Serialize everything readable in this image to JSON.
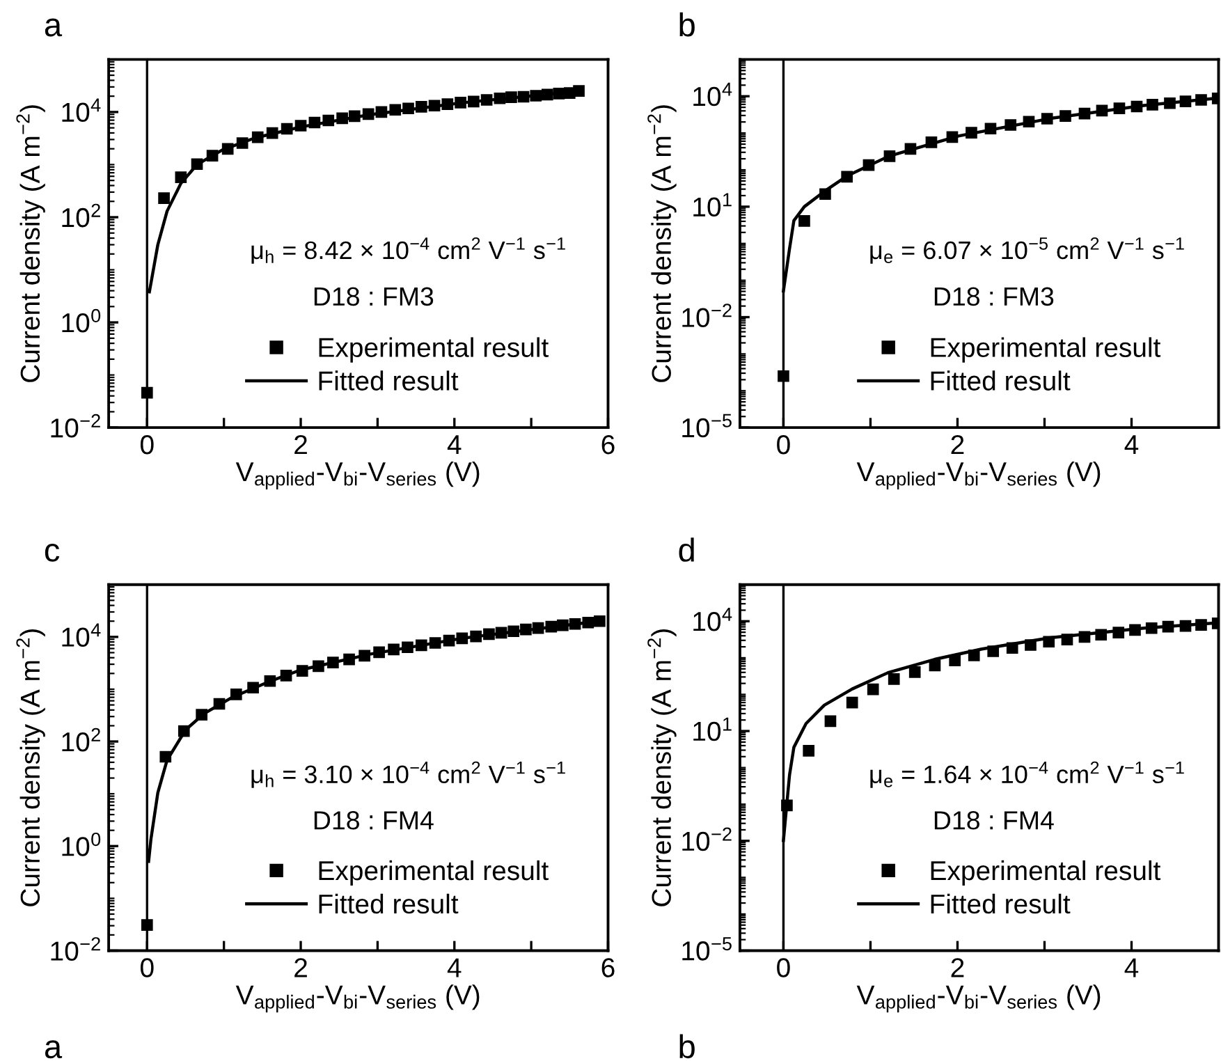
{
  "chart_data": [
    {
      "type": "scatter",
      "title": "a",
      "xlabel": "V$_{applied}$-V$_{bi}$-V$_{series}$ (V)",
      "ylabel": "Current density (A m$^{−2}$)",
      "annotations": [
        "μ$_{h}$ = 8.42 × 10$^{−4}$ cm$^{2}$ V$^{−1}$ s$^{−1}$",
        "D18 : FM3"
      ],
      "log": "y",
      "xlim": [
        -0.5,
        6
      ],
      "ylim": [
        0.01,
        100000
      ],
      "xticks": [
        0,
        {
          "value": 1,
          "label": null
        },
        2,
        {
          "value": 3,
          "label": null
        },
        4,
        {
          "value": 5,
          "label": null
        },
        6
      ],
      "yticks": [
        {
          "value": 0.01,
          "label": "10$^{−2}$"
        },
        {
          "value": 1,
          "label": "10$^{0}$"
        },
        {
          "value": 100,
          "label": "10$^{2}$"
        },
        {
          "value": 10000,
          "label": "10$^{4}$"
        }
      ],
      "ref_lines": [
        {
          "axis": "x",
          "value": 0,
          "color": "#000000"
        }
      ],
      "legend": "bottom right",
      "grid": false,
      "series": [
        {
          "name": "Experimental result",
          "marker": "square",
          "color": "#000000",
          "x": [
            0,
            0.22,
            0.44,
            0.65,
            0.85,
            1.05,
            1.24,
            1.44,
            1.63,
            1.82,
            2.0,
            2.18,
            2.36,
            2.54,
            2.7,
            2.88,
            3.05,
            3.23,
            3.4,
            3.57,
            3.74,
            3.91,
            4.08,
            4.25,
            4.42,
            4.59,
            4.74,
            4.9,
            5.06,
            5.21,
            5.36,
            5.5,
            5.62
          ],
          "values": [
            0.046,
            230,
            575,
            1020,
            1480,
            1990,
            2570,
            3310,
            3980,
            4790,
            5500,
            6310,
            6920,
            7590,
            8320,
            9120,
            10000,
            11000,
            11700,
            12600,
            13200,
            14100,
            15100,
            15800,
            17000,
            18200,
            19100,
            19500,
            20400,
            21400,
            22400,
            22900,
            25100
          ]
        },
        {
          "name": "Fitted result",
          "type": "line",
          "marker": "none",
          "line_style": "solid",
          "color": "#000000",
          "x": [
            0.03,
            0.14,
            0.26,
            0.44,
            0.65,
            0.98,
            1.4,
            2.0,
            2.9,
            4.1,
            5.63
          ],
          "values": [
            3.8,
            30,
            130,
            440,
            1000,
            1900,
            3200,
            5200,
            8900,
            15000,
            25000
          ]
        }
      ]
    },
    {
      "type": "scatter",
      "title": "b",
      "xlabel": "V$_{applied}$-V$_{bi}$-V$_{series}$ (V)",
      "ylabel": "Current density (A m$^{−2}$)",
      "annotations": [
        "μ$_{e}$ = 6.07 × 10$^{−5}$ cm$^{2}$ V$^{−1}$ s$^{−1}$",
        "D18 : FM3"
      ],
      "log": "y",
      "xlim": [
        -0.5,
        5
      ],
      "ylim": [
        1e-05,
        100000
      ],
      "xticks": [
        0,
        {
          "value": 1,
          "label": null
        },
        2,
        {
          "value": 3,
          "label": null
        },
        4
      ],
      "yticks": [
        {
          "value": 1e-05,
          "label": "10$^{−5}$"
        },
        {
          "value": 0.01,
          "label": "10$^{−2}$"
        },
        {
          "value": 10,
          "label": "10$^{1}$"
        },
        {
          "value": 10000,
          "label": "10$^{4}$"
        }
      ],
      "ref_lines": [
        {
          "axis": "x",
          "value": 0,
          "color": "#000000"
        }
      ],
      "legend": "bottom right",
      "grid": false,
      "series": [
        {
          "name": "Experimental result",
          "marker": "square",
          "color": "#000000",
          "x": [
            0,
            0.24,
            0.48,
            0.73,
            0.98,
            1.22,
            1.46,
            1.7,
            1.94,
            2.16,
            2.38,
            2.61,
            2.82,
            3.03,
            3.24,
            3.46,
            3.66,
            3.86,
            4.06,
            4.24,
            4.44,
            4.62,
            4.8,
            4.99
          ],
          "values": [
            0.00025,
            4.1,
            22,
            65,
            135,
            235,
            370,
            560,
            780,
            1020,
            1320,
            1660,
            2040,
            2450,
            2900,
            3390,
            4070,
            4680,
            5250,
            5890,
            6460,
            7240,
            7940,
            8700
          ]
        },
        {
          "name": "Fitted result",
          "type": "line",
          "marker": "none",
          "line_style": "solid",
          "color": "#000000",
          "x": [
            0.0,
            0.07,
            0.12,
            0.24,
            0.47,
            0.73,
            1.21,
            2.01,
            3.07,
            4.14,
            5.0
          ],
          "values": [
            0.051,
            0.72,
            4.2,
            10,
            26,
            68,
            235,
            830,
            2500,
            5600,
            8900
          ]
        }
      ]
    },
    {
      "type": "scatter",
      "title": "c",
      "xlabel": "V$_{applied}$-V$_{bi}$-V$_{series}$ (V)",
      "ylabel": "Current density (A m$^{−2}$)",
      "annotations": [
        "μ$_{h}$ = 3.10 × 10$^{−4}$ cm$^{2}$ V$^{−1}$ s$^{−1}$",
        "D18 : FM4",
        "a"
      ],
      "log": "y",
      "xlim": [
        -0.5,
        6
      ],
      "ylim": [
        0.01,
        100000
      ],
      "xticks": [
        0,
        {
          "value": 1,
          "label": null
        },
        2,
        {
          "value": 3,
          "label": null
        },
        4,
        {
          "value": 5,
          "label": null
        },
        6
      ],
      "yticks": [
        {
          "value": 0.01,
          "label": "10$^{−2}$"
        },
        {
          "value": 1,
          "label": "10$^{0}$"
        },
        {
          "value": 100,
          "label": "10$^{2}$"
        },
        {
          "value": 10000,
          "label": "10$^{4}$"
        }
      ],
      "ref_lines": [
        {
          "axis": "x",
          "value": 0,
          "color": "#000000"
        }
      ],
      "legend": "bottom right",
      "grid": false,
      "series": [
        {
          "name": "Experimental result",
          "marker": "square",
          "color": "#000000",
          "x": [
            0,
            0.24,
            0.48,
            0.71,
            0.94,
            1.16,
            1.38,
            1.6,
            1.81,
            2.02,
            2.23,
            2.42,
            2.63,
            2.83,
            3.02,
            3.21,
            3.39,
            3.57,
            3.75,
            3.93,
            4.1,
            4.28,
            4.45,
            4.61,
            4.77,
            4.93,
            5.09,
            5.26,
            5.41,
            5.57,
            5.74,
            5.89
          ],
          "values": [
            0.031,
            51,
            158,
            325,
            525,
            795,
            1070,
            1430,
            1820,
            2240,
            2750,
            3240,
            3720,
            4370,
            5100,
            5760,
            6330,
            6920,
            7660,
            8490,
            9400,
            10200,
            11300,
            12000,
            12800,
            13900,
            14800,
            15700,
            16700,
            17700,
            18800,
            20000
          ]
        },
        {
          "name": "Fitted result",
          "type": "line",
          "marker": "none",
          "line_style": "solid",
          "color": "#000000",
          "x": [
            0.02,
            0.05,
            0.14,
            0.26,
            0.5,
            0.74,
            1.1,
            1.58,
            2.0,
            2.9,
            4.1,
            5.93
          ],
          "values": [
            0.51,
            1.35,
            10.5,
            44,
            166,
            340,
            690,
            1380,
            2340,
            4680,
            9400,
            20400
          ]
        }
      ]
    },
    {
      "type": "scatter",
      "title": "d",
      "xlabel": "V$_{applied}$-V$_{bi}$-V$_{series}$ (V)",
      "ylabel": "Current density (A m$^{−2}$)",
      "annotations": [
        "μ$_{e}$ = 1.64 × 10$^{−4}$ cm$^{2}$ V$^{−1}$ s$^{−1}$",
        "D18 : FM4",
        "b"
      ],
      "log": "y",
      "xlim": [
        -0.5,
        5
      ],
      "ylim": [
        1e-05,
        100000
      ],
      "xticks": [
        0,
        {
          "value": 1,
          "label": null
        },
        2,
        {
          "value": 3,
          "label": null
        },
        4
      ],
      "yticks": [
        {
          "value": 1e-05,
          "label": "10$^{−5}$"
        },
        {
          "value": 0.01,
          "label": "10$^{−2}$"
        },
        {
          "value": 10,
          "label": "10$^{1}$"
        },
        {
          "value": 10000,
          "label": "10$^{4}$"
        }
      ],
      "ref_lines": [
        {
          "axis": "x",
          "value": 0,
          "color": "#000000"
        }
      ],
      "legend": "bottom right",
      "grid": false,
      "series": [
        {
          "name": "Experimental result",
          "marker": "square",
          "color": "#000000",
          "x": [
            0.04,
            0.29,
            0.54,
            0.79,
            1.03,
            1.27,
            1.51,
            1.74,
            1.97,
            2.19,
            2.41,
            2.63,
            2.84,
            3.05,
            3.26,
            3.46,
            3.65,
            3.85,
            4.04,
            4.23,
            4.42,
            4.62,
            4.8,
            4.99
          ],
          "values": [
            0.093,
            2.9,
            18.6,
            60,
            138,
            263,
            407,
            617,
            851,
            1170,
            1510,
            1860,
            2240,
            2750,
            3160,
            3720,
            4270,
            4900,
            5750,
            6460,
            7080,
            7410,
            7940,
            8710
          ]
        },
        {
          "name": "Fitted result",
          "type": "line",
          "marker": "none",
          "line_style": "solid",
          "color": "#000000",
          "x": [
            0.0,
            0.03,
            0.07,
            0.12,
            0.26,
            0.47,
            0.79,
            1.21,
            1.74,
            2.28,
            3.07,
            4.14,
            5.0
          ],
          "values": [
            0.0102,
            0.06,
            0.63,
            3.6,
            16,
            51,
            141,
            400,
            910,
            1740,
            3550,
            6460,
            9100
          ]
        }
      ]
    }
  ]
}
